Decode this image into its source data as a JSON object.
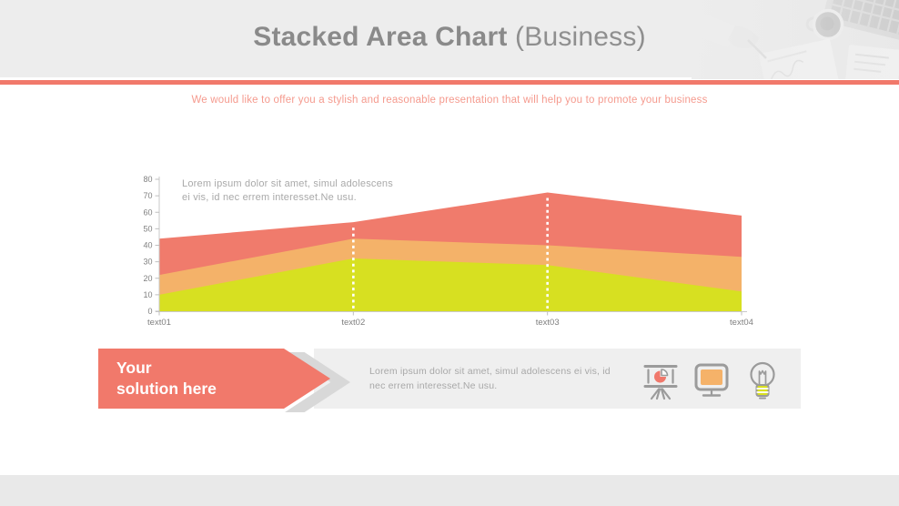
{
  "slide": {
    "title_bold": "Stacked Area Chart",
    "title_light": " (Business)",
    "subtitle": "We would like to offer you a stylish and reasonable presentation that will help you to promote your business"
  },
  "chart_data": {
    "type": "area",
    "stacked": true,
    "title": "",
    "categories": [
      "text01",
      "text02",
      "text03",
      "text04"
    ],
    "series": [
      {
        "name": "bottom series (green)",
        "color": "#d7e021",
        "values": [
          10,
          32,
          28,
          12
        ]
      },
      {
        "name": "middle series (orange)",
        "color": "#f4b269",
        "values": [
          12,
          12,
          12,
          21
        ]
      },
      {
        "name": "top series (red)",
        "color": "#f07b6c",
        "values": [
          22,
          10,
          32,
          25
        ]
      }
    ],
    "cumulative_tops": [
      [
        10,
        32,
        28,
        12
      ],
      [
        22,
        44,
        40,
        33
      ],
      [
        44,
        54,
        72,
        58
      ]
    ],
    "ylim": [
      0,
      80
    ],
    "ytick_step": 10,
    "xlabel": "",
    "ylabel": "",
    "grid": false,
    "legend": "none",
    "marker_lines_at": [
      "text02",
      "text03"
    ],
    "annotation_line1": "Lorem ipsum dolor sit amet, simul adolescens",
    "annotation_line2": "ei vis, id nec errem interesset.Ne usu."
  },
  "banner": {
    "title_line1": "Your",
    "title_line2": "solution here",
    "description": "Lorem ipsum dolor sit amet, simul adolescens ei vis, id nec errem interesset.Ne usu.",
    "icons": [
      "presentation-pie-chart-icon",
      "monitor-icon",
      "light-bulb-icon"
    ]
  },
  "colors": {
    "accent_salmon": "#f1796b",
    "area_red": "#f07b6c",
    "area_orange": "#f4b269",
    "area_green": "#d7e021",
    "title_gray": "#8a8a8a",
    "subtitle_salmon": "#f59a8e",
    "header_gray": "#ededed",
    "footer_gray": "#e9e9e9"
  }
}
